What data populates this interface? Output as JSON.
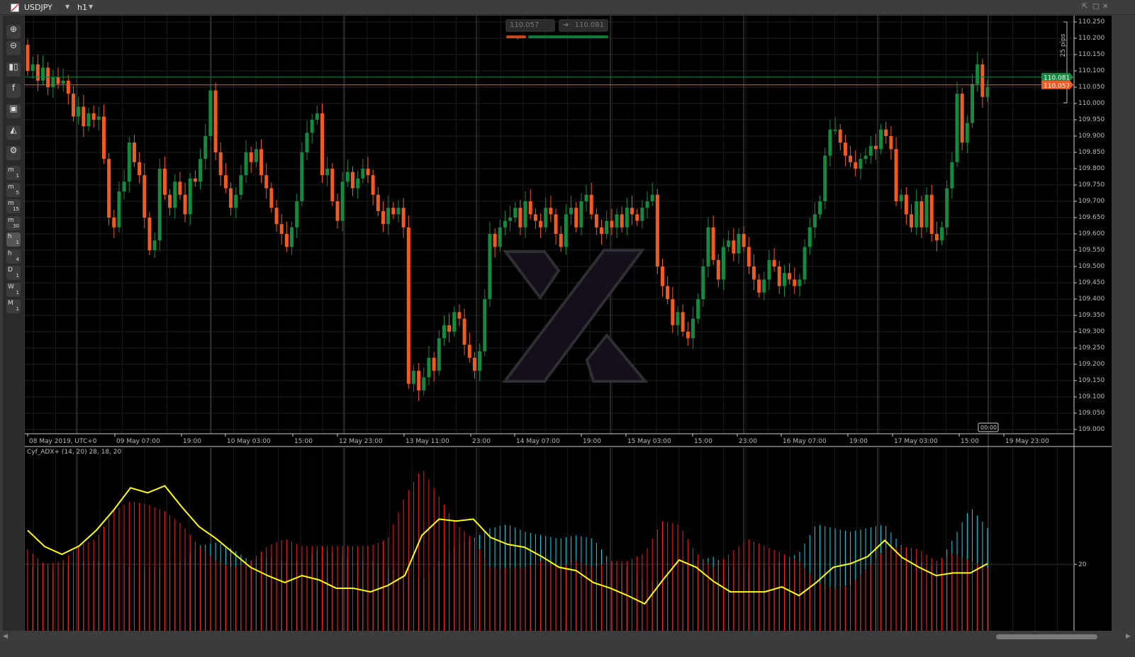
{
  "header": {
    "symbol": "USDJPY",
    "timeframe": "h1"
  },
  "quotes": {
    "sell": "110.057",
    "buy": "110.081"
  },
  "toolbar": {
    "tools": [
      "zoom-in",
      "zoom-out",
      "chart-type",
      "facebook",
      "bot",
      "shapes",
      "chart-settings"
    ],
    "periods": [
      {
        "l": "m",
        "n": "1"
      },
      {
        "l": "m",
        "n": "5"
      },
      {
        "l": "m",
        "n": "15"
      },
      {
        "l": "m",
        "n": "30"
      },
      {
        "l": "h",
        "n": "1"
      },
      {
        "l": "h",
        "n": "4"
      },
      {
        "l": "D",
        "n": "1"
      },
      {
        "l": "W",
        "n": "1"
      },
      {
        "l": "M",
        "n": "1"
      }
    ],
    "active_period": "h1"
  },
  "colors": {
    "bull": "#138a3e",
    "bear": "#f05a23",
    "adx": "#ffff00",
    "plus_di": "#19d6e6",
    "minus_di": "#ff1a1a",
    "bid_line": "#f05a23",
    "ask_line": "#138a3e"
  },
  "price_axis": {
    "labels": [
      "110.250",
      "110.200",
      "110.150",
      "110.100",
      "110.050",
      "110.000",
      "109.950",
      "109.900",
      "109.850",
      "109.800",
      "109.750",
      "109.700",
      "109.650",
      "109.600",
      "109.550",
      "109.500",
      "109.450",
      "109.400",
      "109.350",
      "109.300",
      "109.250",
      "109.200",
      "109.150",
      "109.100",
      "109.050",
      "109.000"
    ],
    "ask_tag": "110.081",
    "bid_tag": "110.057",
    "range_label": "25 pips"
  },
  "time_axis": {
    "labels": [
      "08 May 2019, UTC+0",
      "09 May 07:00",
      "19:00",
      "10 May 03:00",
      "15:00",
      "12 May 23:00",
      "13 May 11:00",
      "23:00",
      "14 May 07:00",
      "19:00",
      "15 May 03:00",
      "15:00",
      "23:00",
      "16 May 07:00",
      "19:00",
      "17 May 03:00",
      "15:00",
      "19 May 23:00"
    ],
    "cursor_label": "00:00"
  },
  "chart_data": {
    "type": "candlestick",
    "ylim": [
      109.0,
      110.25
    ],
    "first_open": 110.18,
    "closes": [
      110.1,
      110.12,
      110.07,
      110.11,
      110.05,
      110.08,
      110.06,
      110.07,
      110.03,
      109.96,
      109.99,
      109.93,
      109.97,
      109.95,
      109.96,
      109.83,
      109.65,
      109.62,
      109.73,
      109.76,
      109.88,
      109.82,
      109.78,
      109.65,
      109.55,
      109.58,
      109.8,
      109.72,
      109.68,
      109.76,
      109.72,
      109.66,
      109.77,
      109.76,
      109.83,
      109.9,
      110.04,
      109.85,
      109.78,
      109.74,
      109.68,
      109.72,
      109.78,
      109.85,
      109.82,
      109.86,
      109.78,
      109.74,
      109.68,
      109.63,
      109.6,
      109.56,
      109.62,
      109.7,
      109.85,
      109.91,
      109.95,
      109.97,
      109.78,
      109.8,
      109.7,
      109.64,
      109.76,
      109.79,
      109.74,
      109.77,
      109.8,
      109.78,
      109.72,
      109.67,
      109.63,
      109.68,
      109.66,
      109.68,
      109.62,
      109.14,
      109.18,
      109.12,
      109.16,
      109.22,
      109.18,
      109.28,
      109.32,
      109.3,
      109.36,
      109.34,
      109.26,
      109.22,
      109.18,
      109.24,
      109.4,
      109.6,
      109.56,
      109.62,
      109.64,
      109.65,
      109.68,
      109.62,
      109.7,
      109.66,
      109.64,
      109.62,
      109.68,
      109.66,
      109.6,
      109.56,
      109.66,
      109.68,
      109.62,
      109.7,
      109.72,
      109.66,
      109.62,
      109.6,
      109.64,
      109.62,
      109.66,
      109.62,
      109.68,
      109.66,
      109.64,
      109.68,
      109.7,
      109.72,
      109.5,
      109.44,
      109.4,
      109.32,
      109.36,
      109.3,
      109.28,
      109.34,
      109.4,
      109.5,
      109.62,
      109.52,
      109.46,
      109.56,
      109.58,
      109.54,
      109.6,
      109.56,
      109.5,
      109.46,
      109.42,
      109.46,
      109.52,
      109.5,
      109.44,
      109.48,
      109.46,
      109.44,
      109.46,
      109.56,
      109.62,
      109.66,
      109.7,
      109.84,
      109.92,
      109.92,
      109.88,
      109.84,
      109.82,
      109.8,
      109.83,
      109.84,
      109.87,
      109.86,
      109.92,
      109.9,
      109.86,
      109.7,
      109.72,
      109.66,
      109.62,
      109.7,
      109.62,
      109.72,
      109.6,
      109.58,
      109.62,
      109.74,
      109.82,
      110.03,
      109.88,
      109.94,
      110.06,
      110.12,
      110.02,
      110.05
    ]
  },
  "indicator": {
    "title": "Cyf_ADX+ (14, 20) 28, 18, 20",
    "level_label": "20",
    "ylim": [
      0,
      55
    ],
    "adx": [
      30.2,
      25.3,
      23,
      25.5,
      30.2,
      36.2,
      43,
      41.5,
      43.6,
      37.2,
      31.3,
      27.7,
      23.4,
      19.1,
      16.6,
      14.5,
      16.6,
      15.3,
      12.8,
      12.8,
      11.7,
      13.6,
      16.6,
      28.7,
      33.6,
      33,
      33.6,
      28.1,
      26,
      25.1,
      22.3,
      19.1,
      18.1,
      14.5,
      12.8,
      10.6,
      8.1,
      14.9,
      21.3,
      19.1,
      14.9,
      11.7,
      11.7,
      11.7,
      13.2,
      10.6,
      14.5,
      19.1,
      20.2,
      22.3,
      27.2,
      22.1,
      19.1,
      16.6,
      17.4,
      17.4,
      20.2
    ],
    "minus_di": [
      24.5,
      20,
      21,
      25.5,
      27.7,
      36,
      39,
      38,
      36,
      32,
      25.5,
      21,
      19,
      21,
      25.5,
      27.7,
      25.5,
      25.5,
      25.5,
      25.5,
      25.5,
      27.7,
      40.4,
      49,
      40.4,
      32,
      27.7,
      19,
      19,
      19,
      21,
      19,
      21,
      19,
      21,
      21,
      23.4,
      33,
      32,
      23.4,
      19,
      23.4,
      27.7,
      25.5,
      23.4,
      21,
      14.9,
      12.8,
      13.8,
      19,
      24.5,
      25.5,
      24.5,
      21,
      23.4,
      21,
      19
    ],
    "plus_di": [
      19,
      19,
      19,
      21,
      21,
      21,
      19,
      19,
      19,
      21,
      25.5,
      26.6,
      24.5,
      21,
      22.3,
      21,
      21,
      24.5,
      23.4,
      21,
      21,
      19,
      17,
      14.9,
      21,
      25.5,
      27.7,
      30.9,
      32,
      29.8,
      28.7,
      27.7,
      28.7,
      27.7,
      21,
      19,
      14.9,
      14.9,
      19,
      21,
      22.3,
      19,
      19,
      19,
      21,
      23.4,
      32,
      30.9,
      29.8,
      30.9,
      32,
      25.5,
      21,
      19,
      27.7,
      37.2,
      30.9
    ]
  }
}
